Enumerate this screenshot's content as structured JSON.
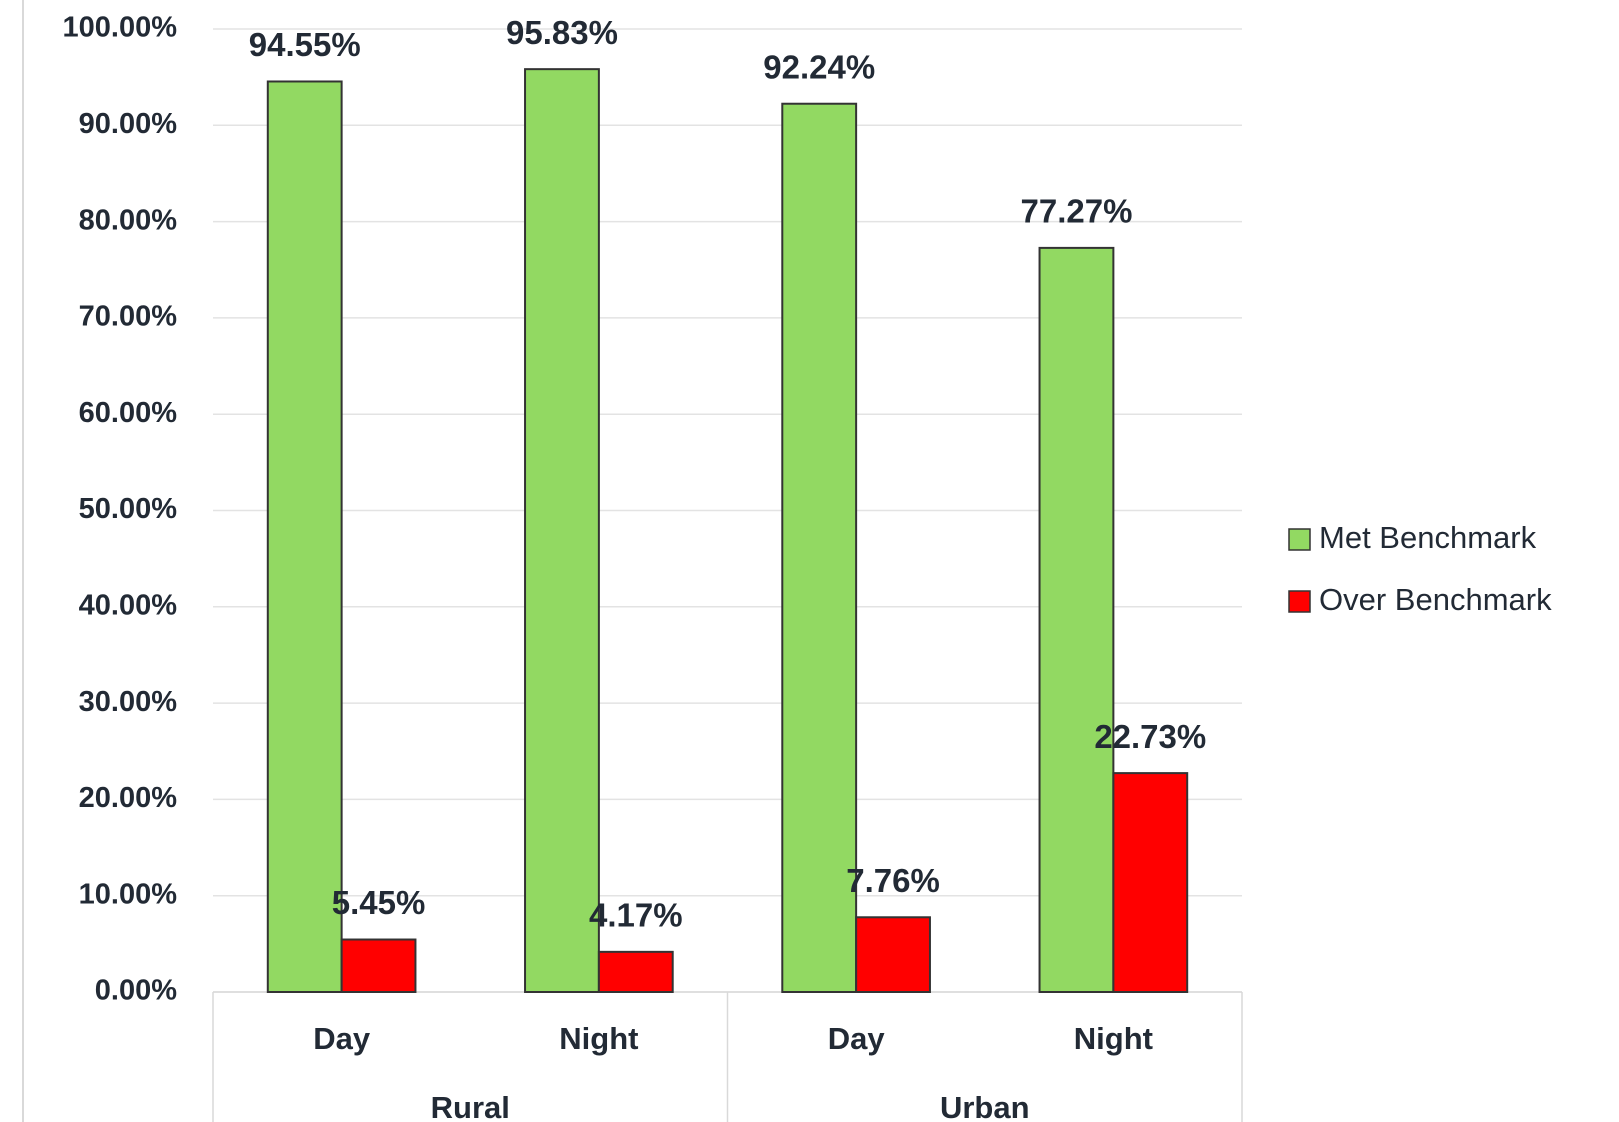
{
  "chart_data": {
    "type": "bar",
    "categories": [
      "Day",
      "Night",
      "Day",
      "Night"
    ],
    "groups": [
      "Rural",
      "Urban"
    ],
    "series": [
      {
        "name": "Met Benchmark",
        "color": "#92d962",
        "values": [
          94.55,
          95.83,
          92.24,
          77.27
        ],
        "value_labels": [
          "94.55%",
          "95.83%",
          "92.24%",
          "77.27%"
        ]
      },
      {
        "name": "Over Benchmark",
        "color": "#ff0000",
        "values": [
          5.45,
          4.17,
          7.76,
          22.73
        ],
        "value_labels": [
          "5.45%",
          "4.17%",
          "7.76%",
          "22.73%"
        ]
      }
    ],
    "ylim": [
      0,
      100
    ],
    "yticks": [
      {
        "value": 0,
        "label": "0.00%"
      },
      {
        "value": 10,
        "label": "10.00%"
      },
      {
        "value": 20,
        "label": "20.00%"
      },
      {
        "value": 30,
        "label": "30.00%"
      },
      {
        "value": 40,
        "label": "40.00%"
      },
      {
        "value": 50,
        "label": "50.00%"
      },
      {
        "value": 60,
        "label": "60.00%"
      },
      {
        "value": 70,
        "label": "70.00%"
      },
      {
        "value": 80,
        "label": "80.00%"
      },
      {
        "value": 90,
        "label": "90.00%"
      },
      {
        "value": 100,
        "label": "100.00%"
      }
    ],
    "grid": true,
    "legend": "right"
  }
}
